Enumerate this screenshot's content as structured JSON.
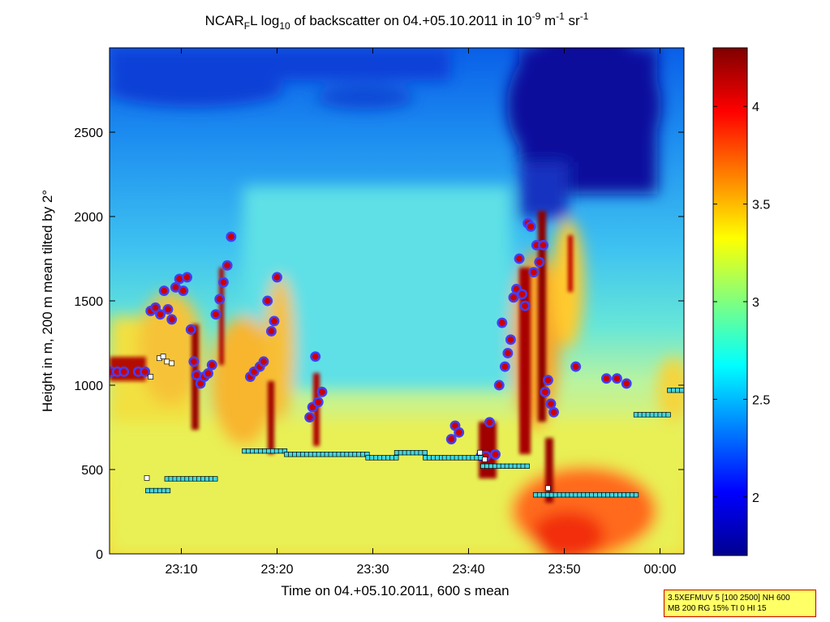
{
  "chart_data": {
    "type": "heatmap",
    "title": {
      "part1": "NCAR",
      "sub1": "F",
      "part2": "L log",
      "sub2": "10",
      "part3": " of backscatter on 04.+05.10.2011 in 10",
      "sup1": "-9",
      "part4": " m",
      "sup2": "-1",
      "part5": " sr",
      "sup3": "-1"
    },
    "xlabel": "Time on 04.+05.10.2011, 600 s mean",
    "ylabel": "Height in m, 200 m mean tilted by 2°",
    "x_axis": {
      "range_minutes_from_23_00": [
        2.5,
        62.5
      ],
      "tick_minutes": [
        10,
        20,
        30,
        40,
        50,
        60
      ],
      "tick_labels": [
        "23:10",
        "23:20",
        "23:30",
        "23:40",
        "23:50",
        "00:00"
      ]
    },
    "y_axis": {
      "range": [
        0,
        3000
      ],
      "ticks": [
        0,
        500,
        1000,
        1500,
        2000,
        2500
      ],
      "tick_labels": [
        "0",
        "500",
        "1000",
        "1500",
        "2000",
        "2500"
      ]
    },
    "colorbar": {
      "range": [
        1.7,
        4.3
      ],
      "ticks": [
        2,
        2.5,
        3,
        3.5,
        4
      ],
      "tick_labels": [
        "2",
        "2.5",
        "3",
        "3.5",
        "4"
      ],
      "colormap": "jet"
    },
    "grid": false,
    "series": [
      {
        "marker": "circle",
        "color_fill": "#cc0000",
        "color_edge": "#4040ff",
        "points": [
          [
            2.7,
            1080
          ],
          [
            3.3,
            1080
          ],
          [
            4.0,
            1080
          ],
          [
            5.5,
            1080
          ],
          [
            6.2,
            1080
          ],
          [
            6.8,
            1440
          ],
          [
            7.3,
            1460
          ],
          [
            7.8,
            1420
          ],
          [
            8.2,
            1560
          ],
          [
            8.6,
            1450
          ],
          [
            9.0,
            1390
          ],
          [
            9.4,
            1580
          ],
          [
            9.8,
            1630
          ],
          [
            10.2,
            1560
          ],
          [
            10.6,
            1640
          ],
          [
            11.0,
            1330
          ],
          [
            11.3,
            1140
          ],
          [
            11.6,
            1060
          ],
          [
            12.0,
            1010
          ],
          [
            12.4,
            1050
          ],
          [
            12.8,
            1070
          ],
          [
            13.2,
            1120
          ],
          [
            13.6,
            1420
          ],
          [
            14.0,
            1510
          ],
          [
            14.4,
            1610
          ],
          [
            14.8,
            1710
          ],
          [
            15.2,
            1880
          ],
          [
            17.2,
            1050
          ],
          [
            17.6,
            1080
          ],
          [
            18.2,
            1110
          ],
          [
            18.6,
            1140
          ],
          [
            19.0,
            1500
          ],
          [
            19.4,
            1320
          ],
          [
            19.7,
            1380
          ],
          [
            20.0,
            1640
          ],
          [
            23.4,
            810
          ],
          [
            23.7,
            870
          ],
          [
            24.0,
            1170
          ],
          [
            24.3,
            900
          ],
          [
            24.7,
            960
          ],
          [
            38.2,
            680
          ],
          [
            38.6,
            760
          ],
          [
            39.0,
            720
          ],
          [
            41.3,
            580
          ],
          [
            41.8,
            580
          ],
          [
            42.2,
            780
          ],
          [
            42.8,
            590
          ],
          [
            43.2,
            1000
          ],
          [
            43.5,
            1370
          ],
          [
            43.8,
            1110
          ],
          [
            44.1,
            1190
          ],
          [
            44.4,
            1270
          ],
          [
            44.7,
            1520
          ],
          [
            45.0,
            1570
          ],
          [
            45.3,
            1750
          ],
          [
            45.6,
            1540
          ],
          [
            45.9,
            1470
          ],
          [
            46.2,
            1960
          ],
          [
            46.5,
            1940
          ],
          [
            46.8,
            1670
          ],
          [
            47.1,
            1830
          ],
          [
            47.4,
            1730
          ],
          [
            47.8,
            1830
          ],
          [
            48.0,
            960
          ],
          [
            48.3,
            1030
          ],
          [
            48.6,
            890
          ],
          [
            48.9,
            840
          ],
          [
            51.2,
            1110
          ],
          [
            54.4,
            1040
          ],
          [
            55.5,
            1040
          ],
          [
            56.5,
            1010
          ]
        ]
      },
      {
        "marker": "square",
        "color_fill": "#3fd8e0",
        "color_edge": "#000000",
        "segments": [
          [
            6.5,
            9.0,
            375
          ],
          [
            8.5,
            13.8,
            445
          ],
          [
            16.6,
            21.0,
            610
          ],
          [
            21.0,
            29.5,
            590
          ],
          [
            29.5,
            32.5,
            570
          ],
          [
            32.5,
            35.5,
            600
          ],
          [
            35.5,
            37.5,
            570
          ],
          [
            37.5,
            41.5,
            570
          ],
          [
            41.5,
            46.5,
            520
          ],
          [
            47.0,
            57.5,
            350
          ],
          [
            57.5,
            61.0,
            825
          ],
          [
            61.0,
            62.5,
            970
          ]
        ]
      },
      {
        "marker": "square",
        "color_fill": "#ffffff",
        "color_edge": "#000000",
        "points": [
          [
            6.4,
            450
          ],
          [
            7.7,
            1160
          ],
          [
            8.1,
            1170
          ],
          [
            8.5,
            1140
          ],
          [
            9.0,
            1130
          ],
          [
            6.8,
            1050
          ],
          [
            41.2,
            600
          ],
          [
            41.7,
            560
          ],
          [
            48.3,
            390
          ]
        ]
      }
    ],
    "annotation_lines": [
      "3.5XEFMUV 5 [100 2500] NH 600",
      "MB 200 RG 15% TI 0 HI 15"
    ]
  }
}
